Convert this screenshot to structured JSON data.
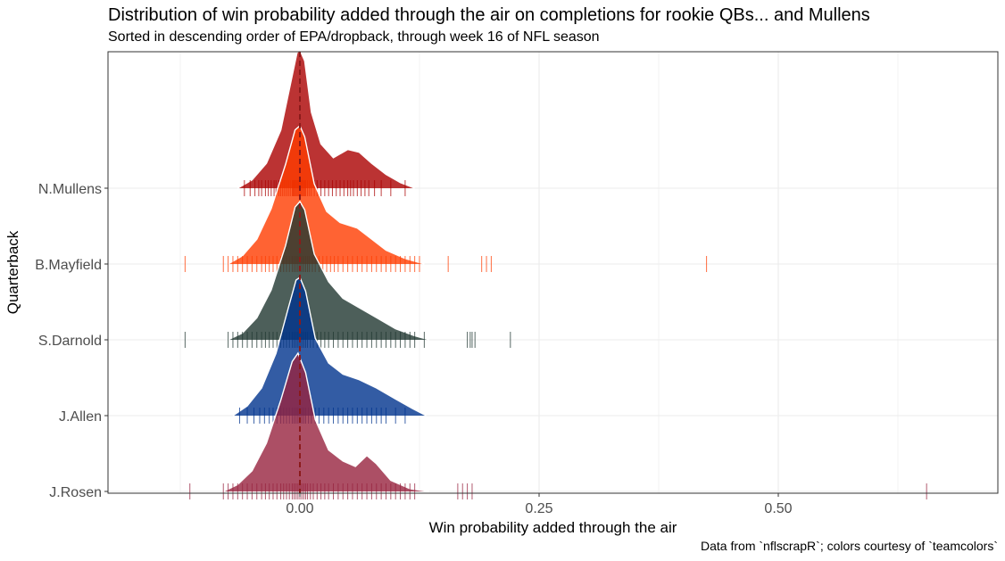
{
  "chart_data": {
    "type": "ridgeline",
    "title": "Distribution of win probability added through the air on completions for rookie QBs... and Mullens",
    "subtitle": "Sorted in descending order of EPA/dropback, through week 16 of NFL season",
    "caption": "Data from `nflscrapR`; colors courtesy of `teamcolors`",
    "xlabel": "Win probability added through the air",
    "ylabel": "Quarterback",
    "xlim": [
      -0.1,
      0.73
    ],
    "x_ticks": [
      0.0,
      0.25,
      0.5
    ],
    "x_tick_labels": [
      "0.00",
      "0.25",
      "0.50"
    ],
    "reference_line": {
      "x": 0.0,
      "style": "dashed",
      "color": "#8b1a1a"
    },
    "grid": true,
    "categories": [
      "N.Mullens",
      "B.Mayfield",
      "S.Darnold",
      "J.Allen",
      "J.Rosen"
    ],
    "series": [
      {
        "name": "N.Mullens",
        "fill": "#aa0000",
        "rug": "#aa0000",
        "density": [
          [
            -0.065,
            0.0
          ],
          [
            -0.05,
            0.06
          ],
          [
            -0.035,
            0.18
          ],
          [
            -0.02,
            0.42
          ],
          [
            -0.01,
            0.75
          ],
          [
            -0.003,
            0.98
          ],
          [
            0.0,
            1.0
          ],
          [
            0.005,
            0.92
          ],
          [
            0.012,
            0.55
          ],
          [
            0.022,
            0.32
          ],
          [
            0.035,
            0.22
          ],
          [
            0.05,
            0.28
          ],
          [
            0.062,
            0.26
          ],
          [
            0.075,
            0.18
          ],
          [
            0.09,
            0.1
          ],
          [
            0.105,
            0.04
          ],
          [
            0.12,
            0.0
          ]
        ],
        "rug_x": [
          -0.058,
          -0.052,
          -0.047,
          -0.043,
          -0.04,
          -0.036,
          -0.033,
          -0.03,
          -0.027,
          -0.025,
          -0.022,
          -0.02,
          -0.018,
          -0.016,
          -0.014,
          -0.012,
          -0.01,
          -0.008,
          -0.007,
          -0.006,
          -0.005,
          -0.004,
          -0.003,
          -0.002,
          -0.001,
          0.0,
          0.001,
          0.002,
          0.003,
          0.004,
          0.005,
          0.006,
          0.008,
          0.01,
          0.012,
          0.015,
          0.018,
          0.022,
          0.026,
          0.03,
          0.034,
          0.038,
          0.042,
          0.046,
          0.05,
          0.053,
          0.056,
          0.06,
          0.064,
          0.068,
          0.072,
          0.078,
          0.085,
          0.095,
          0.11
        ]
      },
      {
        "name": "B.Mayfield",
        "fill": "#ff3c00",
        "rug": "#ff3c00",
        "density": [
          [
            -0.075,
            0.0
          ],
          [
            -0.06,
            0.06
          ],
          [
            -0.045,
            0.18
          ],
          [
            -0.03,
            0.4
          ],
          [
            -0.015,
            0.72
          ],
          [
            -0.005,
            0.97
          ],
          [
            0.0,
            1.0
          ],
          [
            0.005,
            0.92
          ],
          [
            0.015,
            0.58
          ],
          [
            0.028,
            0.38
          ],
          [
            0.042,
            0.3
          ],
          [
            0.06,
            0.26
          ],
          [
            0.075,
            0.18
          ],
          [
            0.09,
            0.1
          ],
          [
            0.11,
            0.04
          ],
          [
            0.13,
            0.0
          ]
        ],
        "rug_x": [
          -0.12,
          -0.08,
          -0.075,
          -0.07,
          -0.065,
          -0.06,
          -0.055,
          -0.05,
          -0.045,
          -0.04,
          -0.036,
          -0.032,
          -0.028,
          -0.024,
          -0.02,
          -0.017,
          -0.014,
          -0.011,
          -0.008,
          -0.006,
          -0.004,
          -0.002,
          0.0,
          0.002,
          0.004,
          0.006,
          0.008,
          0.01,
          0.013,
          0.016,
          0.02,
          0.024,
          0.028,
          0.032,
          0.036,
          0.04,
          0.045,
          0.05,
          0.055,
          0.06,
          0.065,
          0.07,
          0.075,
          0.08,
          0.085,
          0.09,
          0.095,
          0.1,
          0.105,
          0.11,
          0.115,
          0.12,
          0.125,
          0.155,
          0.19,
          0.195,
          0.2,
          0.425
        ]
      },
      {
        "name": "S.Darnold",
        "fill": "#203731",
        "rug": "#203731",
        "density": [
          [
            -0.075,
            0.0
          ],
          [
            -0.06,
            0.05
          ],
          [
            -0.045,
            0.16
          ],
          [
            -0.03,
            0.36
          ],
          [
            -0.015,
            0.68
          ],
          [
            -0.005,
            0.96
          ],
          [
            0.0,
            1.0
          ],
          [
            0.005,
            0.94
          ],
          [
            0.015,
            0.62
          ],
          [
            0.03,
            0.42
          ],
          [
            0.045,
            0.3
          ],
          [
            0.06,
            0.24
          ],
          [
            0.08,
            0.16
          ],
          [
            0.1,
            0.08
          ],
          [
            0.12,
            0.03
          ],
          [
            0.135,
            0.0
          ]
        ],
        "rug_x": [
          -0.12,
          -0.075,
          -0.07,
          -0.065,
          -0.06,
          -0.055,
          -0.05,
          -0.045,
          -0.04,
          -0.036,
          -0.032,
          -0.028,
          -0.024,
          -0.02,
          -0.017,
          -0.014,
          -0.011,
          -0.008,
          -0.006,
          -0.004,
          -0.002,
          0.0,
          0.002,
          0.004,
          0.006,
          0.008,
          0.011,
          0.014,
          0.018,
          0.022,
          0.026,
          0.03,
          0.035,
          0.04,
          0.045,
          0.05,
          0.055,
          0.06,
          0.065,
          0.07,
          0.075,
          0.08,
          0.085,
          0.09,
          0.095,
          0.1,
          0.105,
          0.11,
          0.115,
          0.12,
          0.13,
          0.175,
          0.178,
          0.18,
          0.183,
          0.22
        ]
      },
      {
        "name": "J.Allen",
        "fill": "#00338d",
        "rug": "#00338d",
        "density": [
          [
            -0.07,
            0.0
          ],
          [
            -0.055,
            0.07
          ],
          [
            -0.04,
            0.2
          ],
          [
            -0.025,
            0.45
          ],
          [
            -0.012,
            0.78
          ],
          [
            -0.004,
            0.98
          ],
          [
            0.0,
            1.0
          ],
          [
            0.006,
            0.9
          ],
          [
            0.016,
            0.56
          ],
          [
            0.03,
            0.38
          ],
          [
            0.045,
            0.3
          ],
          [
            0.062,
            0.26
          ],
          [
            0.08,
            0.2
          ],
          [
            0.1,
            0.12
          ],
          [
            0.118,
            0.05
          ],
          [
            0.132,
            0.0
          ]
        ],
        "rug_x": [
          -0.063,
          -0.055,
          -0.048,
          -0.042,
          -0.037,
          -0.032,
          -0.028,
          -0.024,
          -0.02,
          -0.017,
          -0.014,
          -0.011,
          -0.008,
          -0.006,
          -0.004,
          -0.002,
          0.0,
          0.002,
          0.004,
          0.006,
          0.009,
          0.012,
          0.016,
          0.02,
          0.025,
          0.03,
          0.035,
          0.04,
          0.045,
          0.05,
          0.055,
          0.06,
          0.065,
          0.07,
          0.075,
          0.08,
          0.085,
          0.09,
          0.1,
          0.11
        ]
      },
      {
        "name": "J.Rosen",
        "fill": "#97233f",
        "rug": "#97233f",
        "density": [
          [
            -0.08,
            0.0
          ],
          [
            -0.065,
            0.05
          ],
          [
            -0.05,
            0.15
          ],
          [
            -0.035,
            0.35
          ],
          [
            -0.02,
            0.66
          ],
          [
            -0.008,
            0.94
          ],
          [
            -0.002,
            1.0
          ],
          [
            0.006,
            0.86
          ],
          [
            0.016,
            0.52
          ],
          [
            0.03,
            0.3
          ],
          [
            0.045,
            0.22
          ],
          [
            0.058,
            0.18
          ],
          [
            0.07,
            0.26
          ],
          [
            0.08,
            0.2
          ],
          [
            0.095,
            0.08
          ],
          [
            0.115,
            0.02
          ],
          [
            0.135,
            0.0
          ]
        ],
        "rug_x": [
          -0.115,
          -0.08,
          -0.075,
          -0.07,
          -0.065,
          -0.06,
          -0.055,
          -0.05,
          -0.045,
          -0.04,
          -0.036,
          -0.032,
          -0.028,
          -0.024,
          -0.02,
          -0.017,
          -0.014,
          -0.011,
          -0.008,
          -0.006,
          -0.004,
          -0.002,
          0.0,
          0.002,
          0.004,
          0.006,
          0.008,
          0.011,
          0.014,
          0.018,
          0.022,
          0.026,
          0.03,
          0.035,
          0.04,
          0.045,
          0.05,
          0.055,
          0.06,
          0.065,
          0.07,
          0.075,
          0.08,
          0.085,
          0.09,
          0.095,
          0.1,
          0.105,
          0.11,
          0.115,
          0.12,
          0.165,
          0.17,
          0.175,
          0.18,
          0.655
        ]
      }
    ]
  }
}
